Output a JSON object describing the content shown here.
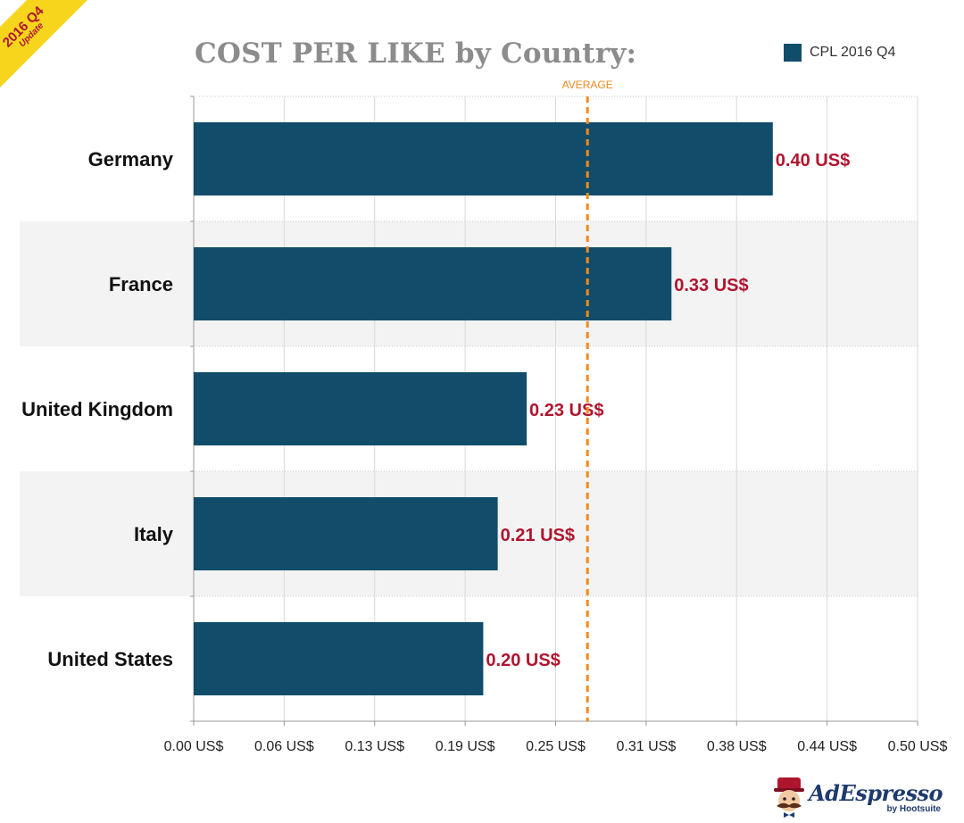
{
  "badge": {
    "line1": "2016 Q4",
    "line2": "Update"
  },
  "brand": {
    "name": "AdEspresso",
    "sub": "by Hootsuite"
  },
  "colors": {
    "bar": "#114d6b",
    "label": "#b0152e",
    "average": "#f08a1c",
    "axis": "#666666",
    "band": "#f3f3f3",
    "title": "#8c8c8c"
  },
  "chart_data": {
    "type": "bar",
    "orientation": "horizontal",
    "title": "COST PER LIKE by Country:",
    "legend": {
      "label": "CPL 2016 Q4",
      "position": "top-right"
    },
    "categories": [
      "Germany",
      "France",
      "United Kingdom",
      "Italy",
      "United States"
    ],
    "series": [
      {
        "name": "CPL 2016 Q4",
        "values": [
          0.4,
          0.33,
          0.23,
          0.21,
          0.2
        ]
      }
    ],
    "data_labels": [
      "0.40 US$",
      "0.33 US$",
      "0.23 US$",
      "0.21 US$",
      "0.20 US$"
    ],
    "xlim": [
      0,
      0.5
    ],
    "x_ticks": [
      0.0,
      0.0625,
      0.125,
      0.1875,
      0.25,
      0.3125,
      0.375,
      0.4375,
      0.5
    ],
    "x_tick_labels": [
      "0.00 US$",
      "0.06 US$",
      "0.13 US$",
      "0.19 US$",
      "0.25 US$",
      "0.31 US$",
      "0.38 US$",
      "0.44 US$",
      "0.50 US$"
    ],
    "average": {
      "value": 0.272,
      "label": "AVERAGE"
    },
    "grid": true
  }
}
